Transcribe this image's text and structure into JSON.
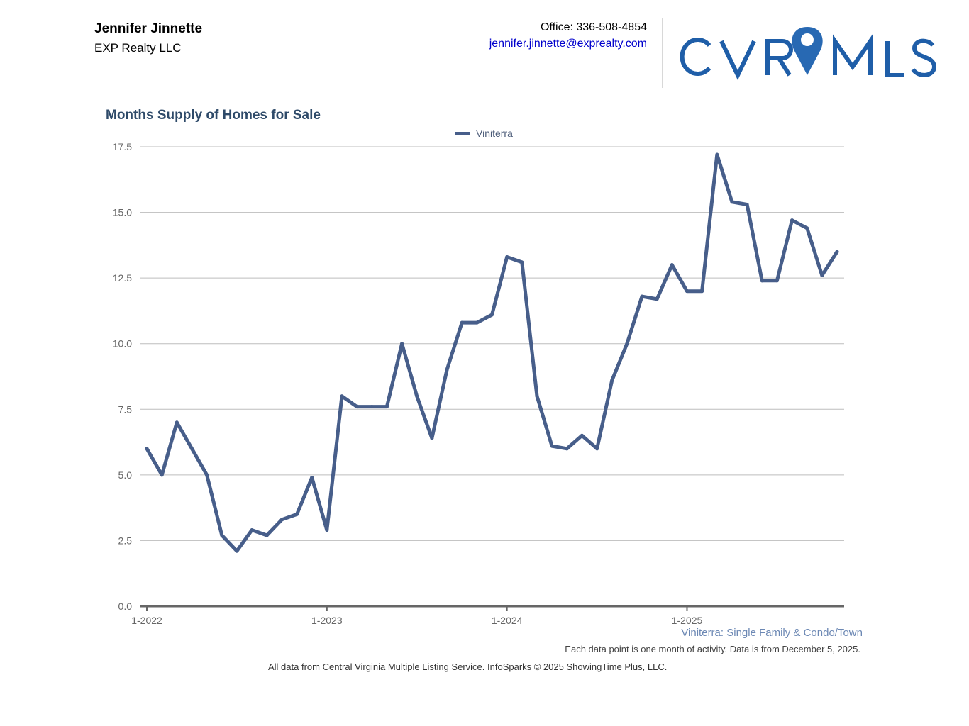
{
  "header": {
    "agent_name": "Jennifer Jinnette",
    "company": "EXP Realty LLC",
    "office_phone": "Office: 336-508-4854",
    "email": "jennifer.jinnette@exprealty.com",
    "logo_text": "CVRMLS"
  },
  "colors": {
    "series": "#475e8a",
    "title": "#2e4a69",
    "logo": "#1f5ea8",
    "gridline": "#bdbdbd",
    "axis": "#666666"
  },
  "chart_data": {
    "type": "line",
    "title": "Months Supply of Homes for Sale",
    "xlabel": "",
    "ylabel": "",
    "ylim": [
      0,
      17.5
    ],
    "yticks": [
      "0.0",
      "2.5",
      "5.0",
      "7.5",
      "10.0",
      "12.5",
      "15.0",
      "17.5"
    ],
    "xticks": [
      {
        "label": "1-2022",
        "index": 0
      },
      {
        "label": "1-2023",
        "index": 12
      },
      {
        "label": "1-2024",
        "index": 24
      },
      {
        "label": "1-2025",
        "index": 36
      }
    ],
    "legend": "top-center",
    "series": [
      {
        "name": "Viniterra",
        "values": [
          6.0,
          5.0,
          7.0,
          6.0,
          5.0,
          2.7,
          2.1,
          2.9,
          2.7,
          3.3,
          3.5,
          4.9,
          2.9,
          8.0,
          7.6,
          7.6,
          7.6,
          10.0,
          8.0,
          6.4,
          9.0,
          10.8,
          10.8,
          11.1,
          13.3,
          13.1,
          8.0,
          6.1,
          6.0,
          6.5,
          6.0,
          8.6,
          10.0,
          11.8,
          11.7,
          13.0,
          12.0,
          12.0,
          17.2,
          15.4,
          15.3,
          12.4,
          12.4,
          14.7,
          14.4,
          12.6,
          13.5
        ]
      }
    ]
  },
  "footer": {
    "series_note": "Viniterra: Single Family & Condo/Town",
    "data_note": "Each data point is one month of activity. Data is from December 5, 2025.",
    "copyright": "All data from Central Virginia Multiple Listing Service. InfoSparks © 2025 ShowingTime Plus, LLC."
  }
}
